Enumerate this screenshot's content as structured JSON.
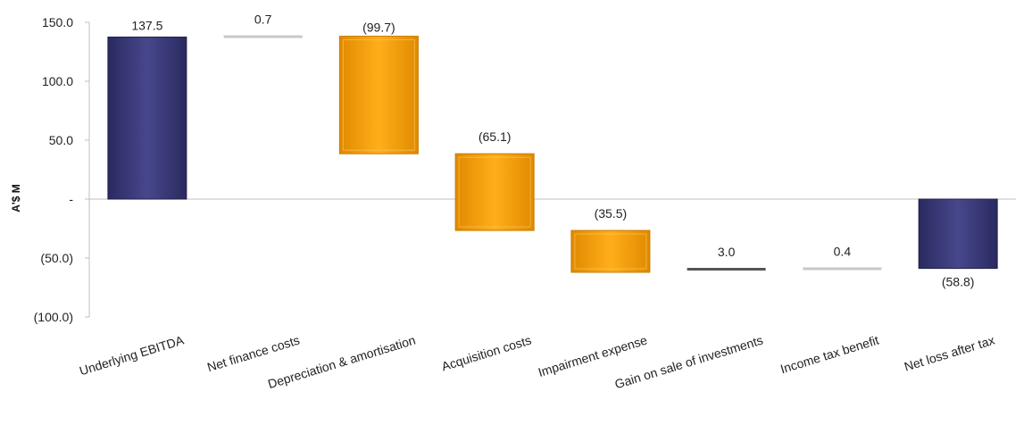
{
  "chart_data": {
    "type": "waterfall",
    "ylabel": "A'$ M",
    "ylim": [
      -100,
      150
    ],
    "yticks": [
      {
        "value": 150,
        "label": "150.0"
      },
      {
        "value": 100,
        "label": "100.0"
      },
      {
        "value": 50,
        "label": "50.0"
      },
      {
        "value": 0,
        "label": "-"
      },
      {
        "value": -50,
        "label": "(50.0)"
      },
      {
        "value": -100,
        "label": "(100.0)"
      }
    ],
    "categories": [
      "Underlying EBITDA",
      "Net finance costs",
      "Depreciation & amortisation",
      "Acquisition costs",
      "Impairment expense",
      "Gain on sale of investments",
      "Income tax benefit",
      "Net loss after tax"
    ],
    "steps": [
      {
        "label": "137.5",
        "value": 137.5,
        "kind": "total",
        "start": 0,
        "end": 137.5
      },
      {
        "label": "0.7",
        "value": 0.7,
        "kind": "change",
        "start": 137.5,
        "end": 138.2
      },
      {
        "label": "(99.7)",
        "value": -99.7,
        "kind": "change",
        "start": 138.2,
        "end": 38.5
      },
      {
        "label": "(65.1)",
        "value": -65.1,
        "kind": "change",
        "start": 38.5,
        "end": -26.6
      },
      {
        "label": "(35.5)",
        "value": -35.5,
        "kind": "change",
        "start": -26.6,
        "end": -62.1
      },
      {
        "label": "3.0",
        "value": 3.0,
        "kind": "change",
        "start": -62.1,
        "end": -59.1
      },
      {
        "label": "0.4",
        "value": 0.4,
        "kind": "change",
        "start": -59.1,
        "end": -58.7
      },
      {
        "label": "(58.8)",
        "value": -58.8,
        "kind": "total",
        "start": 0,
        "end": -58.8
      }
    ],
    "colors": {
      "total": "#3a3a78",
      "decrease": "#f5a000",
      "increase_line": "#c8c8c8",
      "gain_line": "#555555",
      "axis": "#bfbfbf"
    }
  }
}
